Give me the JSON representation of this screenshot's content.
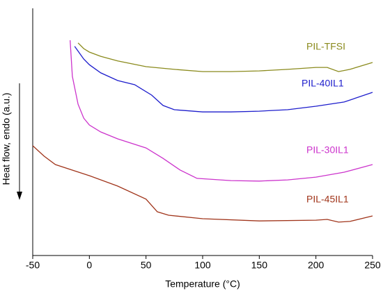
{
  "chart_data": {
    "type": "line",
    "xlabel": "Temperature (°C)",
    "ylabel": "Heat flow, endo (a.u.)",
    "xlim": [
      -50,
      250
    ],
    "xticks": [
      -50,
      0,
      50,
      100,
      150,
      200,
      250
    ],
    "ylim": [
      0,
      100
    ],
    "series": [
      {
        "name": "PIL-TFSI",
        "color": "#8a8a1c",
        "x": [
          -10,
          -5,
          0,
          10,
          25,
          50,
          75,
          100,
          125,
          150,
          175,
          200,
          210,
          220,
          230,
          250
        ],
        "values": [
          86.0,
          83.7,
          82.3,
          80.6,
          78.7,
          76.4,
          75.3,
          74.4,
          74.4,
          74.7,
          75.3,
          76.1,
          76.1,
          74.4,
          75.3,
          78.1
        ]
      },
      {
        "name": "PIL-40IL1",
        "color": "#1c1ccc",
        "x": [
          -13,
          -5,
          0,
          10,
          25,
          40,
          55,
          65,
          75,
          100,
          125,
          150,
          175,
          200,
          225,
          250
        ],
        "values": [
          84.6,
          79.5,
          77.2,
          73.9,
          70.8,
          69.1,
          64.9,
          60.7,
          59.0,
          58.1,
          58.1,
          58.4,
          59.0,
          60.4,
          62.1,
          66.0
        ]
      },
      {
        "name": "PIL-30IL1",
        "color": "#cc33cc",
        "x": [
          -17,
          -15,
          -10,
          -5,
          0,
          10,
          25,
          50,
          65,
          80,
          95,
          125,
          150,
          175,
          200,
          225,
          250
        ],
        "values": [
          87.1,
          72.5,
          61.2,
          55.6,
          52.8,
          50.0,
          47.2,
          43.5,
          39.3,
          34.6,
          31.2,
          30.3,
          30.1,
          30.6,
          31.7,
          33.7,
          36.8
        ]
      },
      {
        "name": "PIL-45IL1",
        "color": "#a0341a",
        "x": [
          -50,
          -40,
          -30,
          0,
          25,
          50,
          60,
          70,
          100,
          150,
          200,
          210,
          220,
          230,
          250
        ],
        "values": [
          44.4,
          40.2,
          36.8,
          32.3,
          28.1,
          22.8,
          17.7,
          16.3,
          14.9,
          14.0,
          14.3,
          14.6,
          13.5,
          13.8,
          16.0
        ]
      }
    ]
  }
}
